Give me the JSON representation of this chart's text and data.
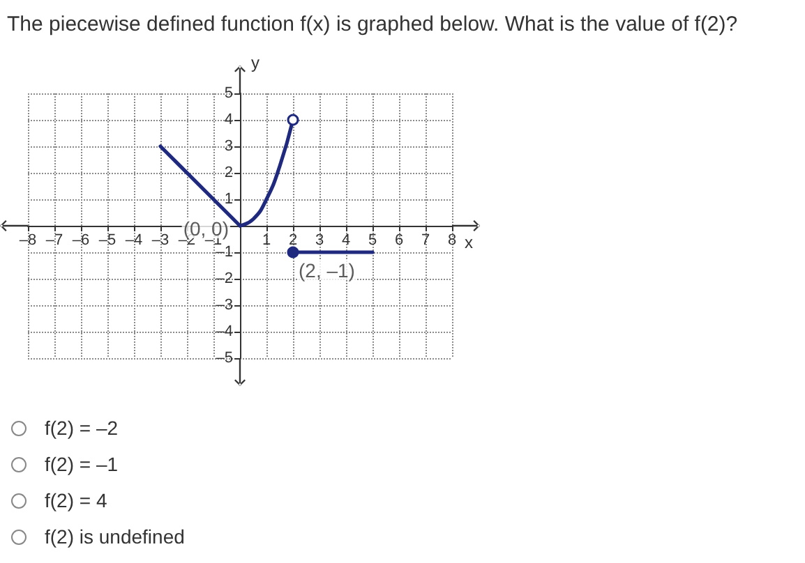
{
  "chart_data": {
    "type": "line",
    "title": "The piecewise defined function f(x) is graphed below. What is the value of f(2)?",
    "xlabel": "x",
    "ylabel": "y",
    "xlim": [
      -8,
      8
    ],
    "ylim": [
      -5,
      5
    ],
    "xticks": [
      {
        "value": -8,
        "label": "–8"
      },
      {
        "value": -7,
        "label": "–7"
      },
      {
        "value": -6,
        "label": "–6"
      },
      {
        "value": -5,
        "label": "–5"
      },
      {
        "value": -4,
        "label": "–4"
      },
      {
        "value": -3,
        "label": "–3"
      },
      {
        "value": -2,
        "label": "–2"
      },
      {
        "value": -1,
        "label": "–1"
      },
      {
        "value": 0,
        "label": null
      },
      1,
      2,
      3,
      4,
      5,
      6,
      7,
      8
    ],
    "yticks": [
      {
        "value": -5,
        "label": "–5"
      },
      {
        "value": -4,
        "label": "–4"
      },
      {
        "value": -3,
        "label": "–3"
      },
      {
        "value": -2,
        "label": "–2"
      },
      {
        "value": -1,
        "label": "–1"
      },
      {
        "value": 0,
        "label": null
      },
      1,
      2,
      3,
      4,
      5
    ],
    "grid": true,
    "series": [
      {
        "type": "line",
        "color": "#1f2a7f",
        "x": [
          -3,
          0
        ],
        "values": [
          3,
          0
        ],
        "marker": "none"
      },
      {
        "type": "line",
        "color": "#1f2a7f",
        "x": [
          0,
          0.5,
          1,
          1.5,
          2
        ],
        "values": [
          0,
          0.25,
          1,
          2.25,
          4
        ],
        "marker": "none"
      },
      {
        "type": "line",
        "color": "#1f2a7f",
        "x": [
          2,
          5
        ],
        "values": [
          -1,
          -1
        ],
        "marker": "none"
      },
      {
        "type": "scatter",
        "color": "#1f2a7f",
        "x": [
          2
        ],
        "values": [
          -1
        ],
        "marker": "circle"
      },
      {
        "type": "scatter",
        "color": "#ffffff",
        "x": [
          2
        ],
        "values": [
          4
        ],
        "marker": "circle"
      }
    ],
    "annotations": [
      {
        "text": "(0, 0)",
        "x": 0,
        "y": 0
      },
      {
        "text": "(2, –1)",
        "x": 2,
        "y": -1
      },
      "f(2) = –2",
      "f(2) = –1",
      "f(2) = 4",
      "f(2) is undefined"
    ]
  }
}
